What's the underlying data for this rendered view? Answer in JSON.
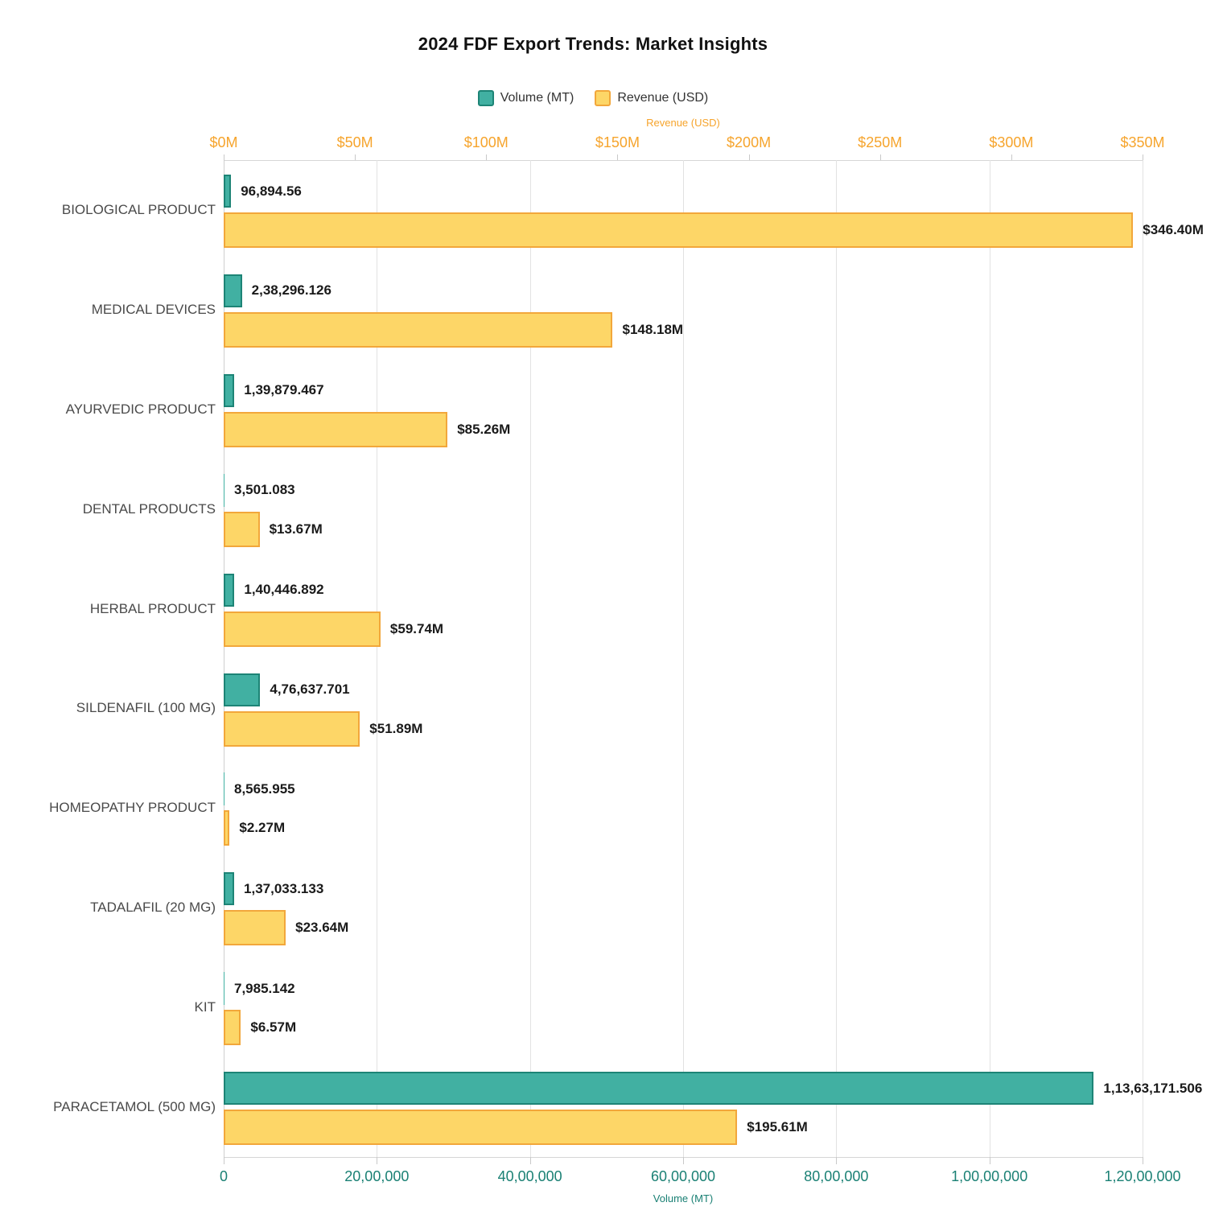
{
  "title": "2024 FDF Export Trends: Market Insights",
  "chart_data": {
    "type": "bar",
    "orientation": "horizontal",
    "grid": true,
    "legend_position": "top",
    "categories": [
      "BIOLOGICAL PRODUCT",
      "MEDICAL DEVICES",
      "AYURVEDIC PRODUCT",
      "DENTAL PRODUCTS",
      "HERBAL PRODUCT",
      "SILDENAFIL (100 MG)",
      "HOMEOPATHY PRODUCT",
      "TADALAFIL (20 MG)",
      "KIT",
      "PARACETAMOL (500 MG)"
    ],
    "series": [
      {
        "name": "Volume (MT)",
        "axis": "bottom",
        "color": "#41b0a2",
        "border_color": "#1d8476",
        "values": [
          96894.56,
          238296.126,
          139879.467,
          3501.083,
          140446.892,
          476637.701,
          8565.955,
          137033.133,
          7985.142,
          11363171.506
        ],
        "labels": [
          "96,894.56",
          "2,38,296.126",
          "1,39,879.467",
          "3,501.083",
          "1,40,446.892",
          "4,76,637.701",
          "8,565.955",
          "1,37,033.133",
          "7,985.142",
          "1,13,63,171.506"
        ]
      },
      {
        "name": "Revenue (USD)",
        "axis": "top",
        "color": "#fdd667",
        "border_color": "#f2a73b",
        "values": [
          346.4,
          148.18,
          85.26,
          13.67,
          59.74,
          51.89,
          2.27,
          23.64,
          6.57,
          195.61
        ],
        "labels": [
          "$346.40M",
          "$148.18M",
          "$85.26M",
          "$13.67M",
          "$59.74M",
          "$51.89M",
          "$2.27M",
          "$23.64M",
          "$6.57M",
          "$195.61M"
        ]
      }
    ],
    "top_axis": {
      "title": "Revenue (USD)",
      "ticks": [
        "$0M",
        "$50M",
        "$100M",
        "$150M",
        "$200M",
        "$250M",
        "$300M",
        "$350M"
      ],
      "min": 0,
      "max": 350,
      "color": "#f6a42c"
    },
    "bottom_axis": {
      "title": "Volume (MT)",
      "ticks": [
        "0",
        "20,00,000",
        "40,00,000",
        "60,00,000",
        "80,00,000",
        "1,00,00,000",
        "1,20,00,000"
      ],
      "min": 0,
      "max": 12000000,
      "color": "#1a8074"
    }
  }
}
